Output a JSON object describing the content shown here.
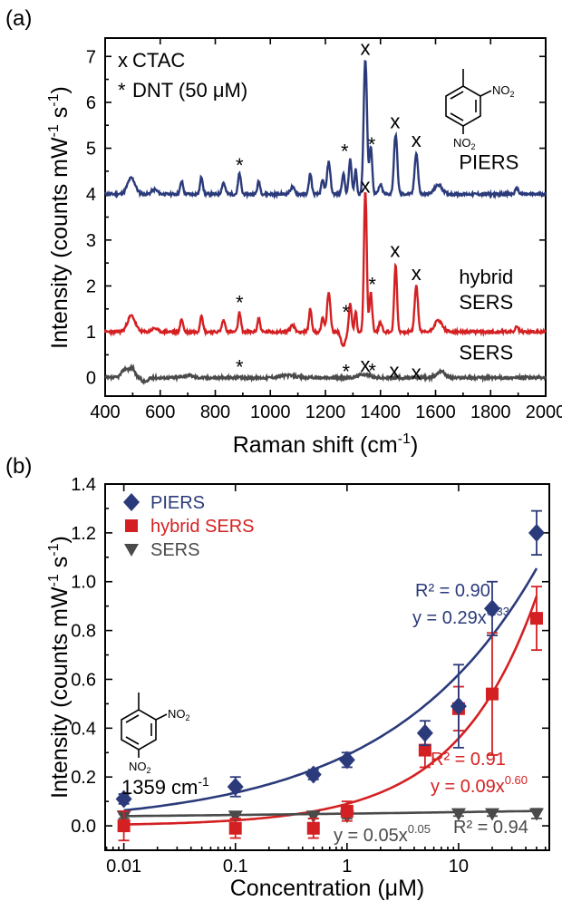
{
  "figure": {
    "panel_a_label": "(a)",
    "panel_b_label": "(b)"
  },
  "chart_data": [
    {
      "type": "line",
      "panel": "a",
      "xlabel": "Raman shift (cm",
      "xlabel_sup": "-1",
      "xlabel_tail": ")",
      "ylabel": "Intensity (counts mW",
      "ylabel_sup1": "-1",
      "ylabel_mid": " s",
      "ylabel_sup2": "-1",
      "ylabel_tail": ")",
      "xlim": [
        400,
        2000
      ],
      "ylim": [
        -0.4,
        7.4
      ],
      "x_ticks": [
        400,
        600,
        800,
        1000,
        1200,
        1400,
        1600,
        1800,
        2000
      ],
      "x_tick_labels": [
        "400",
        "600",
        "800",
        "1000",
        "1200",
        "1400",
        "1600",
        "1800",
        "2000"
      ],
      "y_ticks": [
        0,
        1,
        2,
        3,
        4,
        5,
        6,
        7
      ],
      "y_tick_labels": [
        "0",
        "1",
        "2",
        "3",
        "4",
        "5",
        "6",
        "7"
      ],
      "legend": {
        "cross_symbol": "x",
        "cross_label": "CTAC",
        "star_symbol": "*",
        "star_label": "DNT (50 μM)"
      },
      "series": [
        {
          "name": "PIERS",
          "color": "#2b3a7a",
          "baseline": 4.0,
          "noise_seed": 11,
          "peaks": [
            {
              "x": 495,
              "h": 0.35,
              "w": 14
            },
            {
              "x": 580,
              "h": 0.1,
              "w": 10
            },
            {
              "x": 678,
              "h": 0.28,
              "w": 5
            },
            {
              "x": 750,
              "h": 0.38,
              "w": 5
            },
            {
              "x": 830,
              "h": 0.25,
              "w": 6
            },
            {
              "x": 888,
              "h": 0.45,
              "w": 5
            },
            {
              "x": 958,
              "h": 0.28,
              "w": 5
            },
            {
              "x": 1080,
              "h": 0.15,
              "w": 8
            },
            {
              "x": 1145,
              "h": 0.45,
              "w": 5
            },
            {
              "x": 1190,
              "h": 0.3,
              "w": 5
            },
            {
              "x": 1212,
              "h": 0.7,
              "w": 6
            },
            {
              "x": 1265,
              "h": 0.45,
              "w": 5
            },
            {
              "x": 1290,
              "h": 0.75,
              "w": 5
            },
            {
              "x": 1310,
              "h": 0.55,
              "w": 4
            },
            {
              "x": 1345,
              "h": 2.95,
              "w": 6
            },
            {
              "x": 1365,
              "h": 1.05,
              "w": 5
            },
            {
              "x": 1400,
              "h": 0.2,
              "w": 6
            },
            {
              "x": 1455,
              "h": 1.3,
              "w": 6
            },
            {
              "x": 1530,
              "h": 0.9,
              "w": 6
            },
            {
              "x": 1610,
              "h": 0.2,
              "w": 14
            },
            {
              "x": 1895,
              "h": 0.12,
              "w": 6
            }
          ]
        },
        {
          "name": "hybrid SERS",
          "color": "#d42022",
          "baseline": 1.0,
          "noise_seed": 23,
          "peaks": [
            {
              "x": 495,
              "h": 0.35,
              "w": 14
            },
            {
              "x": 580,
              "h": 0.08,
              "w": 10
            },
            {
              "x": 678,
              "h": 0.28,
              "w": 5
            },
            {
              "x": 750,
              "h": 0.38,
              "w": 5
            },
            {
              "x": 830,
              "h": 0.25,
              "w": 6
            },
            {
              "x": 888,
              "h": 0.42,
              "w": 5
            },
            {
              "x": 958,
              "h": 0.3,
              "w": 5
            },
            {
              "x": 1080,
              "h": 0.15,
              "w": 8
            },
            {
              "x": 1145,
              "h": 0.5,
              "w": 5
            },
            {
              "x": 1190,
              "h": 0.3,
              "w": 5
            },
            {
              "x": 1212,
              "h": 0.85,
              "w": 6
            },
            {
              "x": 1265,
              "h": -0.3,
              "w": 8
            },
            {
              "x": 1290,
              "h": 0.6,
              "w": 5
            },
            {
              "x": 1310,
              "h": 0.45,
              "w": 4
            },
            {
              "x": 1345,
              "h": 3.1,
              "w": 5
            },
            {
              "x": 1365,
              "h": 0.85,
              "w": 5
            },
            {
              "x": 1400,
              "h": 0.2,
              "w": 6
            },
            {
              "x": 1455,
              "h": 1.45,
              "w": 5
            },
            {
              "x": 1530,
              "h": 1.0,
              "w": 6
            },
            {
              "x": 1610,
              "h": 0.25,
              "w": 14
            },
            {
              "x": 1895,
              "h": 0.1,
              "w": 6
            }
          ]
        },
        {
          "name": "SERS",
          "color": "#4a4a4a",
          "baseline": 0.0,
          "noise_seed": 37,
          "peaks": [
            {
              "x": 475,
              "h": 0.2,
              "w": 14
            },
            {
              "x": 500,
              "h": 0.18,
              "w": 8
            },
            {
              "x": 700,
              "h": 0.05,
              "w": 20
            },
            {
              "x": 1060,
              "h": 0.05,
              "w": 30
            },
            {
              "x": 1340,
              "h": 0.08,
              "w": 20
            },
            {
              "x": 1620,
              "h": 0.15,
              "w": 14
            }
          ]
        }
      ],
      "series_labels": [
        {
          "text": "PIERS",
          "x": 1685,
          "y": 4.55
        },
        {
          "text": "hybrid",
          "x": 1685,
          "y": 2.05
        },
        {
          "text": "SERS",
          "x": 1685,
          "y": 1.5
        },
        {
          "text": "SERS",
          "x": 1685,
          "y": 0.4
        }
      ],
      "peak_markers": [
        {
          "sym": "x",
          "x": 1345,
          "y": 7.15
        },
        {
          "sym": "*",
          "x": 1368,
          "y": 5.05
        },
        {
          "sym": "x",
          "x": 1453,
          "y": 5.55
        },
        {
          "sym": "x",
          "x": 1530,
          "y": 5.15
        },
        {
          "sym": "*",
          "x": 888,
          "y": 4.6
        },
        {
          "sym": "*",
          "x": 1270,
          "y": 4.9
        },
        {
          "sym": "x",
          "x": 1345,
          "y": 4.15
        },
        {
          "sym": "*",
          "x": 1370,
          "y": 2.0
        },
        {
          "sym": "x",
          "x": 1453,
          "y": 2.75
        },
        {
          "sym": "x",
          "x": 1530,
          "y": 2.25
        },
        {
          "sym": "*",
          "x": 888,
          "y": 1.6
        },
        {
          "sym": "*",
          "x": 1275,
          "y": 1.4
        },
        {
          "sym": "*",
          "x": 888,
          "y": 0.2
        },
        {
          "sym": "*",
          "x": 1275,
          "y": 0.1
        },
        {
          "sym": "x",
          "x": 1345,
          "y": 0.25
        },
        {
          "sym": "*",
          "x": 1370,
          "y": 0.12
        },
        {
          "sym": "x",
          "x": 1450,
          "y": 0.12
        },
        {
          "sym": "x",
          "x": 1530,
          "y": 0.08
        }
      ],
      "molecule": {
        "no2_a": "NO",
        "no2_a_sub": "2",
        "no2_b": "NO",
        "no2_b_sub": "2"
      }
    },
    {
      "type": "scatter",
      "panel": "b",
      "xscale": "log",
      "xlabel": "Concentration (μM)",
      "ylabel": "Intensity (counts mW",
      "ylabel_sup1": "-1",
      "ylabel_mid": " s",
      "ylabel_sup2": "-1",
      "ylabel_tail": ")",
      "xlim": [
        0.0068,
        65
      ],
      "ylim": [
        -0.1,
        1.4
      ],
      "x_ticks": [
        0.01,
        0.1,
        1,
        10
      ],
      "x_tick_labels": [
        "0.01",
        "0.1",
        "1",
        "10"
      ],
      "y_ticks": [
        0.0,
        0.2,
        0.4,
        0.6,
        0.8,
        1.0,
        1.2,
        1.4
      ],
      "y_tick_labels": [
        "0.0",
        "0.2",
        "0.4",
        "0.6",
        "0.8",
        "1.0",
        "1.2",
        "1.4"
      ],
      "legend_placement": "top-left",
      "series": [
        {
          "name": "PIERS",
          "marker": "diamond",
          "color": "#2b3a7a",
          "x": [
            0.01,
            0.1,
            0.5,
            1,
            5,
            10,
            20,
            50
          ],
          "y": [
            0.11,
            0.16,
            0.21,
            0.27,
            0.38,
            0.49,
            0.89,
            1.2
          ],
          "err": [
            0.02,
            0.04,
            0.02,
            0.03,
            0.05,
            0.17,
            0.11,
            0.09
          ],
          "fit": {
            "a": 0.29,
            "b": 0.33,
            "x_from": 0.01,
            "x_to": 50
          },
          "fit_r2": "R² = 0.90",
          "fit_eq_base": "y = 0.29x",
          "fit_eq_exp": "0.33"
        },
        {
          "name": "hybrid SERS",
          "marker": "square",
          "color": "#d42022",
          "x": [
            0.01,
            0.1,
            0.5,
            1,
            5,
            10,
            20,
            50
          ],
          "y": [
            0.0,
            -0.01,
            -0.01,
            0.06,
            0.31,
            0.48,
            0.54,
            0.85
          ],
          "err": [
            0.06,
            0.04,
            0.04,
            0.04,
            0.07,
            0.09,
            0.25,
            0.13
          ],
          "fit": {
            "a": 0.09,
            "b": 0.6,
            "x_from": 0.01,
            "x_to": 50
          },
          "fit_r2": "R² = 0.91",
          "fit_eq_base": "y = 0.09x",
          "fit_eq_exp": "0.60"
        },
        {
          "name": "SERS",
          "marker": "triangle-down",
          "color": "#4a4a4a",
          "x": [
            0.01,
            0.1,
            0.5,
            1,
            10,
            20,
            50
          ],
          "y": [
            0.04,
            0.04,
            0.04,
            0.04,
            0.05,
            0.05,
            0.05
          ],
          "err": [
            0.01,
            0.01,
            0.01,
            0.01,
            0.01,
            0.01,
            0.02
          ],
          "fit": {
            "a": 0.05,
            "b": 0.05,
            "x_from": 0.01,
            "x_to": 50
          },
          "fit_r2": "R² = 0.94",
          "fit_eq_base": "y = 0.05x",
          "fit_eq_exp": "0.05"
        }
      ],
      "annotation": {
        "text": "1359 cm",
        "sup": "-1"
      },
      "molecule": {
        "no2_a": "NO",
        "no2_a_sub": "2",
        "no2_b": "NO",
        "no2_b_sub": "2"
      }
    }
  ]
}
